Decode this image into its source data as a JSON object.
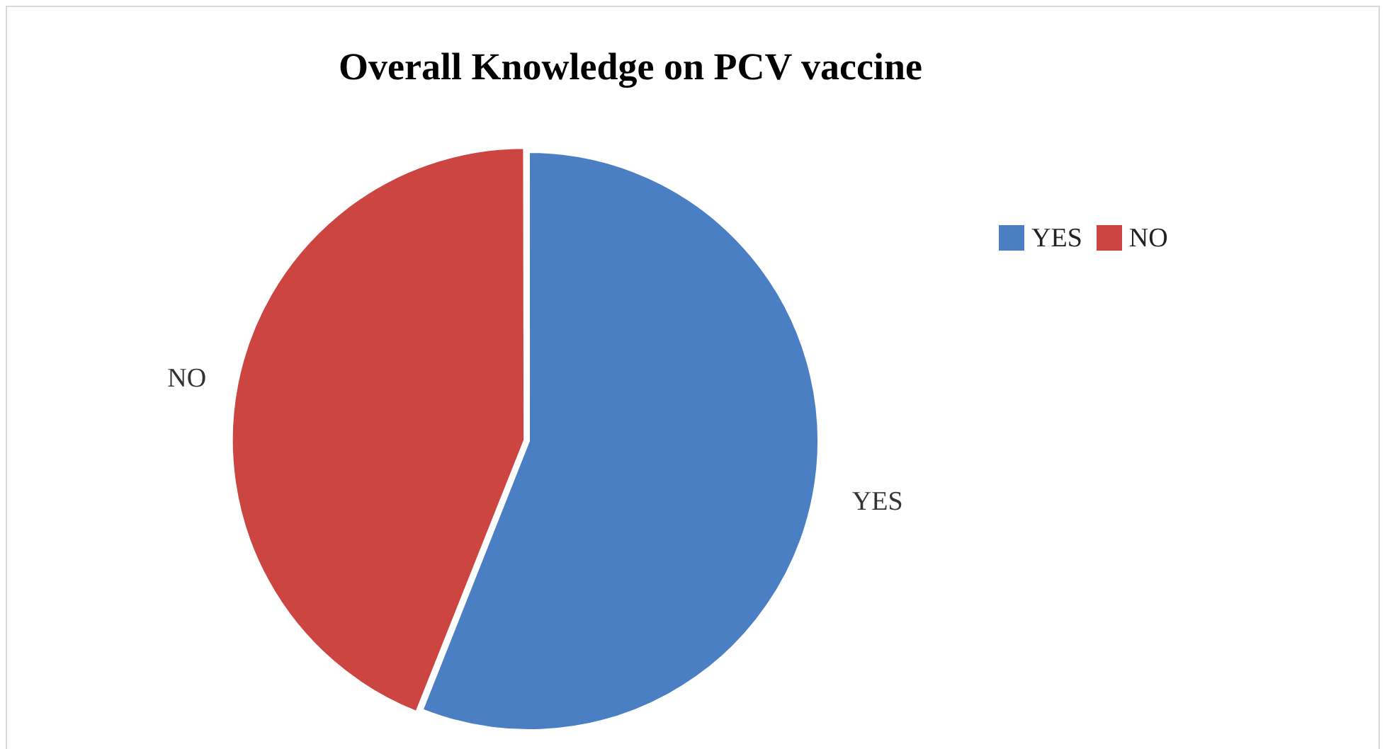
{
  "chart_data": {
    "type": "pie",
    "title": "Overall Knowledge on PCV vaccine",
    "categories": [
      "YES",
      "NO"
    ],
    "values": [
      56,
      44
    ],
    "colors": [
      "#4a7fc4",
      "#cc4541"
    ],
    "legend": "top right"
  }
}
